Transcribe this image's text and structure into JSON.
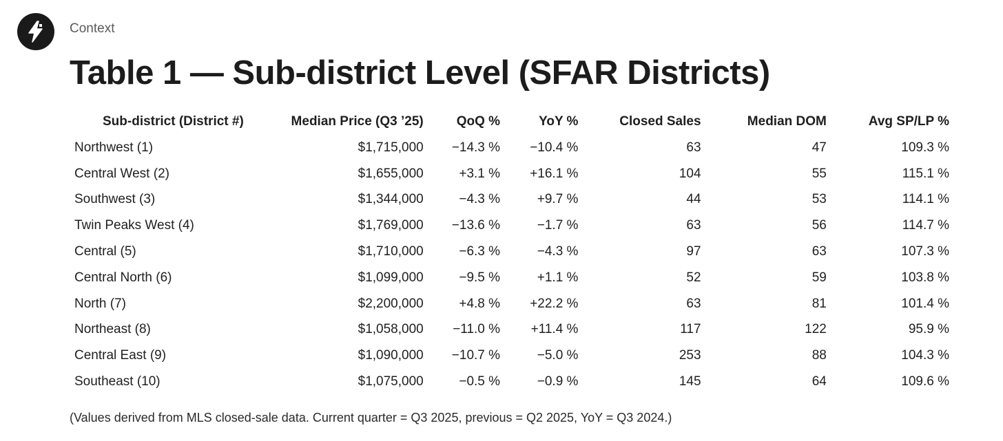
{
  "header": {
    "logo_icon": "lightning-bolt-icon",
    "context_label": "Context"
  },
  "title": "Table 1 — Sub-district Level (SFAR Districts)",
  "table": {
    "columns": [
      "Sub-district (District #)",
      "Median Price (Q3 ’25)",
      "QoQ %",
      "YoY %",
      "Closed Sales",
      "Median DOM",
      "Avg SP/LP %"
    ],
    "rows": [
      [
        "Northwest (1)",
        "$1,715,000",
        "−14.3 %",
        "−10.4 %",
        "63",
        "47",
        "109.3 %"
      ],
      [
        "Central West (2)",
        "$1,655,000",
        "+3.1 %",
        "+16.1 %",
        "104",
        "55",
        "115.1 %"
      ],
      [
        "Southwest (3)",
        "$1,344,000",
        "−4.3 %",
        "+9.7 %",
        "44",
        "53",
        "114.1 %"
      ],
      [
        "Twin Peaks West (4)",
        "$1,769,000",
        "−13.6 %",
        "−1.7 %",
        "63",
        "56",
        "114.7 %"
      ],
      [
        "Central (5)",
        "$1,710,000",
        "−6.3 %",
        "−4.3 %",
        "97",
        "63",
        "107.3 %"
      ],
      [
        "Central North (6)",
        "$1,099,000",
        "−9.5 %",
        "+1.1 %",
        "52",
        "59",
        "103.8 %"
      ],
      [
        "North (7)",
        "$2,200,000",
        "+4.8 %",
        "+22.2 %",
        "63",
        "81",
        "101.4 %"
      ],
      [
        "Northeast (8)",
        "$1,058,000",
        "−11.0 %",
        "+11.4 %",
        "117",
        "122",
        "95.9 %"
      ],
      [
        "Central East (9)",
        "$1,090,000",
        "−10.7 %",
        "−5.0 %",
        "253",
        "88",
        "104.3 %"
      ],
      [
        "Southeast (10)",
        "$1,075,000",
        "−0.5 %",
        "−0.9 %",
        "145",
        "64",
        "109.6 %"
      ]
    ]
  },
  "footnote": "(Values derived from MLS closed-sale data. Current quarter = Q3 2025, previous = Q2 2025, YoY = Q3 2024.)"
}
